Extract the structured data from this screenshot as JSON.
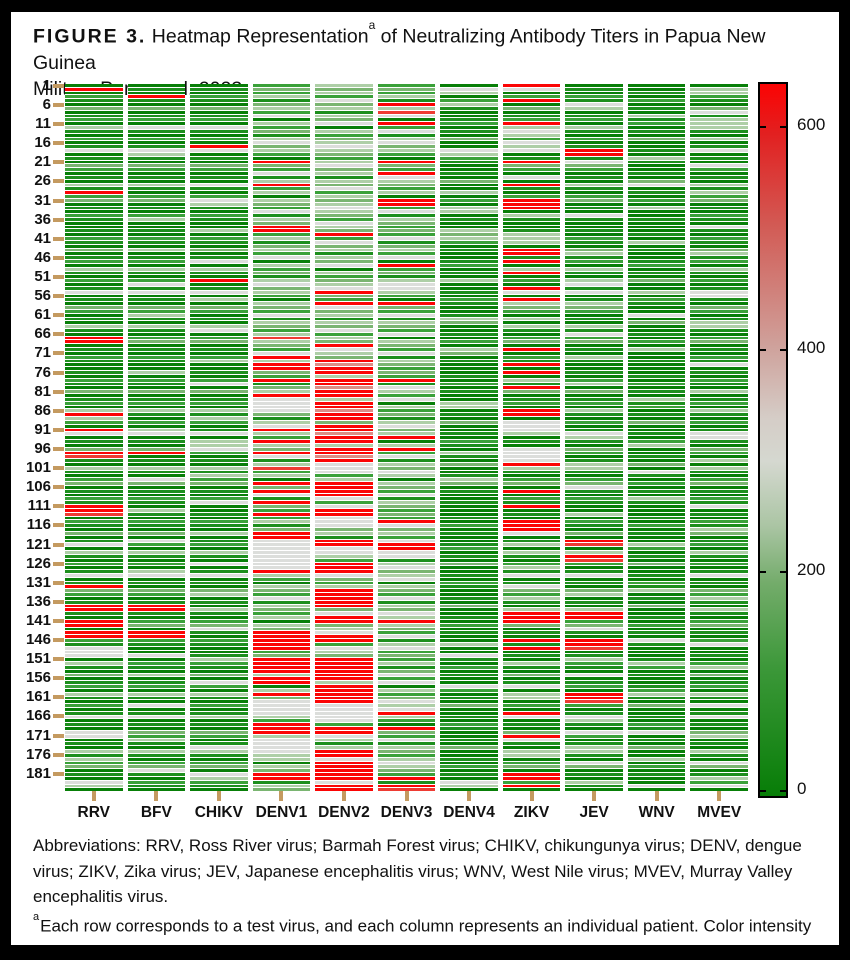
{
  "figure": {
    "label": "FIGURE 3.",
    "title_part1": " Heatmap Representation",
    "title_sup": "a",
    "title_part2": " of Neutralizing Antibody Titers in Papua New Guinea",
    "title_line2": "Military Personnel, 2023"
  },
  "footnotes": {
    "abbreviations": "Abbreviations: RRV, Ross River virus; Barmah Forest virus; CHIKV, chikungunya virus; DENV, dengue virus; ZIKV, Zika virus; JEV, Japanese encephalitis virus; WNV, West Nile virus; MVEV, Murray Valley encephalitis virus.",
    "note_sup": "a",
    "note_text": "Each row corresponds to a test virus, and each column represents an individual patient. Color intensity reflects Nab titer levels."
  },
  "colors": {
    "axis_tick_color": "#c49a60",
    "frame_color": "#000000",
    "background": "#ffffff",
    "text_color": "#111111"
  },
  "chart_data": {
    "type": "heatmap",
    "title": "Heatmap Representation of Neutralizing Antibody Titers in Papua New Guinea Military Personnel, 2023",
    "x_categories": [
      "RRV",
      "BFV",
      "CHIKV",
      "DENV1",
      "DENV2",
      "DENV3",
      "DENV4",
      "ZIKV",
      "JEV",
      "WNV",
      "MVEV"
    ],
    "n_rows": 185,
    "y_tick_labels": [
      "1",
      "6",
      "11",
      "16",
      "21",
      "26",
      "31",
      "36",
      "41",
      "46",
      "51",
      "56",
      "61",
      "66",
      "71",
      "76",
      "81",
      "86",
      "91",
      "96",
      "101",
      "106",
      "111",
      "116",
      "121",
      "126",
      "131",
      "136",
      "141",
      "146",
      "151",
      "156",
      "161",
      "166",
      "171",
      "176",
      "181"
    ],
    "colorbar": {
      "min": 0,
      "max": 640,
      "ticks": [
        {
          "label": "600",
          "pos": 6.0
        },
        {
          "label": "400",
          "pos": 37.3
        },
        {
          "label": "200",
          "pos": 68.6
        },
        {
          "label": "0",
          "pos": 99.3
        }
      ],
      "gradient": [
        {
          "pos": 0,
          "color": "#fb0303"
        },
        {
          "pos": 7,
          "color": "#e22020"
        },
        {
          "pos": 20,
          "color": "#d25b55"
        },
        {
          "pos": 37,
          "color": "#cfa29c"
        },
        {
          "pos": 47,
          "color": "#d5cdc7"
        },
        {
          "pos": 53,
          "color": "#d5d8d0"
        },
        {
          "pos": 62,
          "color": "#abc5a4"
        },
        {
          "pos": 70,
          "color": "#74ac6b"
        },
        {
          "pos": 82,
          "color": "#3c9839"
        },
        {
          "pos": 100,
          "color": "#077d07"
        }
      ]
    },
    "legend_meaning": "green = low titer (0), gray = mid (~300), red = high titer (600+)",
    "palette": {
      "0": "#087f08",
      "1": "#1d8f1d",
      "2": "#3aa139",
      "3": "#7ab571",
      "4": "#aecfa7",
      "5": "#dcdedb",
      "6": "#d6beb9",
      "7": "#dd8d86",
      "8": "#ee3b33",
      "9": "#fb0505"
    },
    "palette_values": {
      "0": 10,
      "1": 60,
      "2": 120,
      "3": 180,
      "4": 240,
      "5": 310,
      "6": 390,
      "7": 460,
      "8": 560,
      "9": 640
    },
    "base_patterns": {
      "green": "0102103012041020150103201041023010210",
      "dark": "0010201001201030010210010300102010010",
      "pale": "4342534143504234543245341435243454325",
      "mixed": "2324134250423145342043251432404325143"
    },
    "columns": [
      {
        "label": "RRV",
        "base": "green",
        "overrides": {
          "9": [
            2,
            29,
            67,
            68,
            87,
            91,
            97,
            111,
            112,
            132,
            137,
            138,
            141,
            142,
            144,
            145
          ],
          "8": [
            98,
            113
          ],
          "5": [
            121,
            148,
            149,
            150,
            170,
            171,
            183
          ],
          "4": [
            88,
            152,
            177,
            184
          ]
        }
      },
      {
        "label": "BFV",
        "base": "green",
        "overrides": {
          "9": [
            4,
            97,
            137,
            138,
            144,
            145
          ],
          "5": [
            12,
            53,
            104,
            120,
            150,
            163,
            180
          ],
          "4": [
            19,
            36,
            44,
            61,
            76,
            91,
            112,
            128,
            155,
            172
          ]
        }
      },
      {
        "label": "CHIKV",
        "base": "green",
        "overrides": {
          "9": [
            17,
            52
          ],
          "5": [
            12,
            27,
            31,
            47,
            65,
            79,
            96,
            110,
            126,
            143,
            157,
            174,
            181
          ],
          "4": [
            32,
            39,
            57,
            73,
            88,
            94,
            95,
            103,
            118,
            134,
            151,
            166,
            182
          ]
        }
      },
      {
        "label": "DENV1",
        "base": "mixed",
        "overrides": {
          "9": [
            21,
            27,
            38,
            39,
            72,
            74,
            75,
            78,
            82,
            91,
            94,
            97,
            105,
            107,
            110,
            113,
            118,
            119,
            128,
            144,
            145,
            146,
            147,
            148,
            151,
            152,
            153,
            154,
            156,
            157,
            160,
            168,
            169,
            170,
            181,
            182
          ],
          "8": [
            67,
            101
          ],
          "5": [
            84,
            85,
            86,
            120,
            121,
            122,
            123,
            124,
            125,
            126,
            127,
            162,
            163,
            164,
            165,
            172,
            173,
            174,
            175
          ],
          "4": [
            140,
            159,
            171,
            176
          ]
        }
      },
      {
        "label": "DENV2",
        "base": "pale",
        "overrides": {
          "9": [
            40,
            55,
            58,
            69,
            73,
            75,
            76,
            78,
            79,
            81,
            82,
            84,
            85,
            87,
            88,
            90,
            91,
            93,
            94,
            96,
            97,
            99,
            105,
            106,
            107,
            108,
            112,
            113,
            120,
            121,
            126,
            127,
            128,
            133,
            134,
            135,
            136,
            137,
            140,
            141,
            145,
            146,
            151,
            152,
            153,
            154,
            155,
            156,
            158,
            159,
            160,
            161,
            162,
            169,
            170,
            175,
            176,
            178,
            179,
            180,
            181,
            182,
            184,
            185
          ],
          "7": [
            74,
            80,
            86,
            92,
            98
          ],
          "5": [
            100,
            101,
            109,
            114,
            115,
            122,
            123,
            129,
            163,
            164,
            165,
            166,
            167,
            171,
            177,
            183
          ]
        }
      },
      {
        "label": "DENV3",
        "base": "mixed",
        "overrides": {
          "9": [
            6,
            11,
            21,
            24,
            31,
            32,
            48,
            58,
            78,
            93,
            96,
            115,
            121,
            122,
            141,
            165,
            169,
            182,
            184
          ],
          "8": [
            8,
            185
          ],
          "5": [
            13,
            16,
            25,
            41,
            54,
            66,
            80,
            90,
            102,
            108,
            116,
            123,
            124,
            130,
            139,
            148,
            155,
            162,
            172,
            178
          ]
        }
      },
      {
        "label": "DENV4",
        "base": "dark",
        "overrides": {
          "5": [
            2,
            18,
            150,
            158,
            183
          ],
          "4": [
            3,
            6,
            19,
            29,
            33,
            34,
            39,
            41,
            52,
            62,
            70,
            84,
            85,
            97,
            104,
            147,
            184
          ],
          "3": [
            40,
            71,
            105
          ]
        }
      },
      {
        "label": "ZIKV",
        "base": "green",
        "overrides": {
          "9": [
            1,
            5,
            11,
            21,
            27,
            31,
            32,
            33,
            44,
            45,
            47,
            50,
            54,
            57,
            70,
            74,
            76,
            80,
            86,
            87,
            100,
            107,
            111,
            115,
            116,
            117,
            139,
            140,
            141,
            146,
            148,
            165,
            171,
            181,
            182,
            184
          ],
          "5": [
            2,
            13,
            16,
            25,
            89,
            90,
            91,
            96,
            97,
            98,
            99,
            118,
            132,
            158,
            172
          ],
          "4": [
            14,
            17,
            35,
            40,
            41,
            42,
            58,
            62,
            78,
            92,
            121,
            127,
            135,
            152,
            161,
            176
          ]
        }
      },
      {
        "label": "JEV",
        "base": "green",
        "overrides": {
          "9": [
            18,
            19,
            120,
            124,
            139,
            140,
            146,
            147,
            160,
            161
          ],
          "8": [
            121,
            125,
            148,
            162
          ],
          "5": [
            6,
            21,
            35,
            53,
            66,
            106,
            129,
            143,
            155,
            170,
            178
          ],
          "4": [
            7,
            27,
            45,
            52,
            58,
            72,
            79,
            86,
            93,
            100,
            113,
            134,
            151,
            167,
            174,
            183
          ]
        }
      },
      {
        "label": "WNV",
        "base": "dark",
        "overrides": {
          "5": [
            27,
            61,
            102,
            146,
            170,
            184
          ],
          "4": [
            9,
            20,
            33,
            42,
            55,
            70,
            83,
            95,
            109,
            121,
            133,
            152,
            160,
            177
          ]
        }
      },
      {
        "label": "MVEV",
        "base": "green",
        "overrides": {
          "5": [
            8,
            22,
            38,
            56,
            74,
            93,
            111,
            129,
            147,
            163,
            178,
            184
          ],
          "4": [
            2,
            3,
            10,
            11,
            15,
            29,
            45,
            63,
            81,
            99,
            117,
            135,
            153,
            171,
            182
          ]
        }
      }
    ]
  }
}
